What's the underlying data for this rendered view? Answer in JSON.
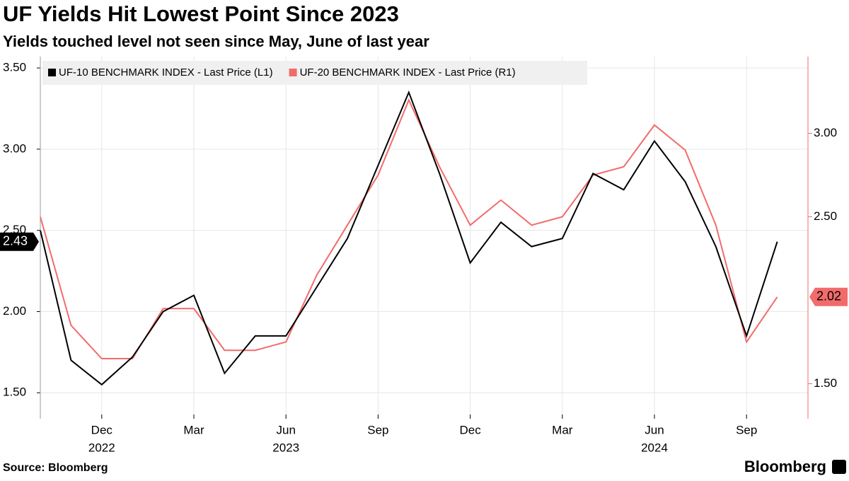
{
  "chart_data": {
    "type": "line",
    "title": "UF Yields Hit Lowest Point Since 2023",
    "subtitle": "Yields touched level not seen since May, June of last year",
    "source": "Source: Bloomberg",
    "brand": "Bloomberg",
    "x": [
      "2022-10",
      "2022-11",
      "2022-12",
      "2023-01",
      "2023-02",
      "2023-03",
      "2023-04",
      "2023-05",
      "2023-06",
      "2023-07",
      "2023-08",
      "2023-09",
      "2023-10",
      "2023-11",
      "2023-12",
      "2024-01",
      "2024-02",
      "2024-03",
      "2024-04",
      "2024-05",
      "2024-06",
      "2024-07",
      "2024-08",
      "2024-09",
      "2024-10"
    ],
    "xlim": [
      "2022-10",
      "2024-11"
    ],
    "xticks": [
      {
        "value": "2022-12",
        "label": "Dec"
      },
      {
        "value": "2023-03",
        "label": "Mar"
      },
      {
        "value": "2023-06",
        "label": "Jun"
      },
      {
        "value": "2023-09",
        "label": "Sep"
      },
      {
        "value": "2023-12",
        "label": "Dec"
      },
      {
        "value": "2024-03",
        "label": "Mar"
      },
      {
        "value": "2024-06",
        "label": "Jun"
      },
      {
        "value": "2024-09",
        "label": "Sep"
      }
    ],
    "x_year_labels": [
      {
        "value": "2022-12",
        "label": "2022"
      },
      {
        "value": "2023-06",
        "label": "2023"
      },
      {
        "value": "2024-06",
        "label": "2024"
      }
    ],
    "ylim": [
      1.34,
      3.57
    ],
    "yticks": [
      {
        "value": 1.5,
        "label": "1.50"
      },
      {
        "value": 2,
        "label": "2.00"
      },
      {
        "value": 2.5,
        "label": "2.50"
      },
      {
        "value": 3,
        "label": "3.00"
      },
      {
        "value": 3.5,
        "label": "3.50"
      }
    ],
    "y2lim": [
      1.29,
      3.46
    ],
    "y2ticks": [
      {
        "value": 1.5,
        "label": "1.50"
      },
      {
        "value": 2.5,
        "label": "2.50"
      },
      {
        "value": 3,
        "label": "3.00"
      }
    ],
    "grid": true,
    "legend": "top-left",
    "series": [
      {
        "name": "UF-10 BENCHMARK INDEX - Last Price (L1)",
        "color": "#000000",
        "values": [
          2.5,
          1.7,
          1.55,
          1.72,
          2.0,
          2.1,
          1.62,
          1.85,
          1.85,
          2.15,
          2.45,
          2.9,
          3.35,
          2.85,
          2.3,
          2.55,
          2.4,
          2.45,
          2.85,
          2.75,
          3.05,
          2.8,
          2.4,
          1.85,
          2.43
        ]
      },
      {
        "name": "UF-20 BENCHMARK INDEX - Last Price (R1)",
        "color": "#f26b6b",
        "axis": "y2",
        "values": [
          2.5,
          1.85,
          1.65,
          1.65,
          1.95,
          1.95,
          1.7,
          1.7,
          1.75,
          2.15,
          2.45,
          2.75,
          3.2,
          2.8,
          2.45,
          2.6,
          2.45,
          2.5,
          2.75,
          2.8,
          3.05,
          2.9,
          2.45,
          1.75,
          2.02
        ]
      }
    ]
  }
}
